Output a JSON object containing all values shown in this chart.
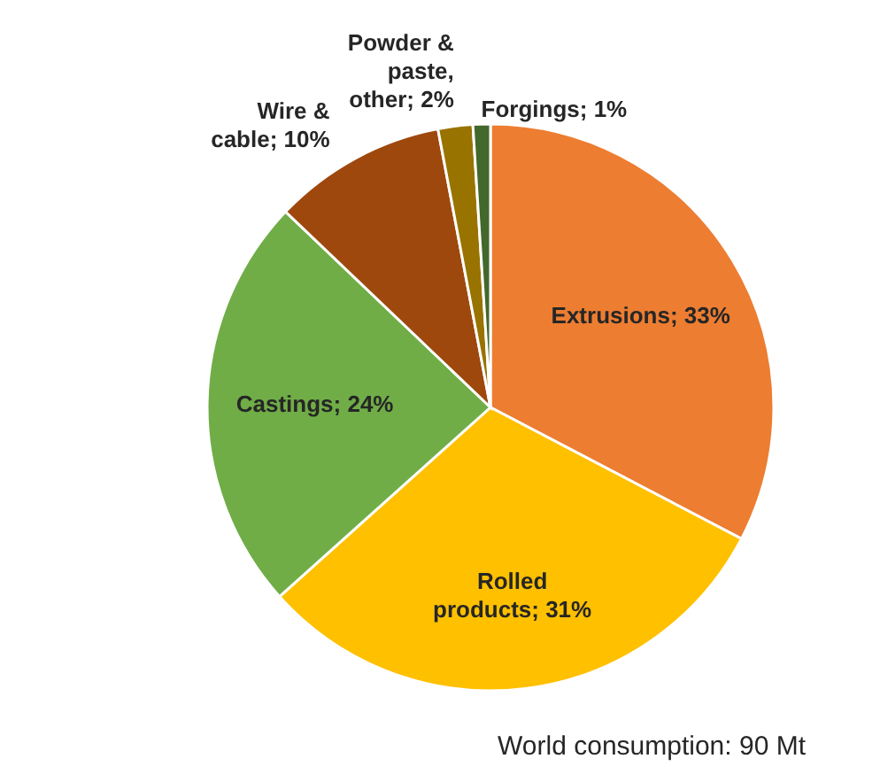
{
  "chart_data": {
    "type": "pie",
    "categories": [
      "Extrusions",
      "Rolled products",
      "Castings",
      "Wire & cable",
      "Powder & paste, other",
      "Forgings"
    ],
    "values": [
      33,
      31,
      24,
      10,
      2,
      1
    ],
    "value_labels": [
      "33%",
      "31%",
      "24%",
      "10%",
      "2%",
      "1%"
    ],
    "colors": [
      "#ed7d31",
      "#ffc000",
      "#70ad47",
      "#9e480e",
      "#997300",
      "#43682b"
    ],
    "annotations": [
      "World consumption: 90 Mt"
    ]
  }
}
